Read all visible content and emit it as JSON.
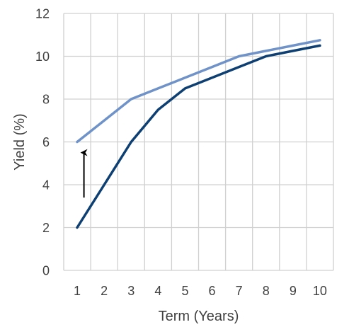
{
  "chart_data": {
    "type": "line",
    "title": "",
    "xlabel": "Term (Years)",
    "ylabel": "Yield (%)",
    "x": [
      1,
      2,
      3,
      4,
      5,
      6,
      7,
      8,
      9,
      10
    ],
    "xlim": [
      0.5,
      10.5
    ],
    "ylim": [
      0,
      12
    ],
    "x_ticks": [
      "1",
      "2",
      "3",
      "4",
      "5",
      "6",
      "7",
      "8",
      "9",
      "10"
    ],
    "y_ticks": [
      "0",
      "2",
      "4",
      "6",
      "8",
      "10",
      "12"
    ],
    "grid": true,
    "legend": "none",
    "series": [
      {
        "color": "#6f93c9",
        "values": [
          6,
          7,
          8,
          8.5,
          9,
          9.5,
          10,
          10.25,
          10.5,
          10.75
        ]
      },
      {
        "color": "#0d3f73",
        "values": [
          2,
          4,
          6,
          7.5,
          8.5,
          9,
          9.5,
          10,
          10.25,
          10.5
        ]
      }
    ],
    "annotations": [
      {
        "type": "arrow",
        "direction": "up",
        "x": 1.25,
        "y_from": 3.4,
        "y_to": 5.5,
        "color": "#000000"
      }
    ]
  }
}
